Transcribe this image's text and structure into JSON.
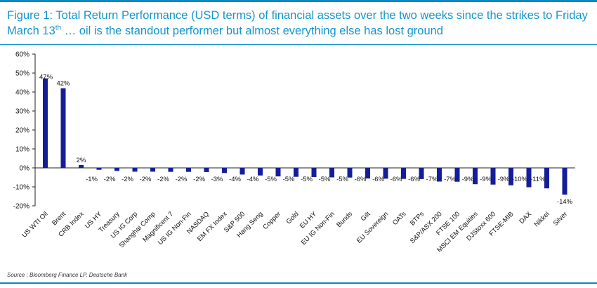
{
  "figure": {
    "title_main": "Figure 1: Total Return Performance (USD terms) of financial assets over the two weeks since the strikes to Friday March 13",
    "title_sup": "th",
    "title_rest": " … oil is the standout performer but almost everything else has lost ground",
    "source": "Source : Bloomberg Finance LP, Deutsche Bank"
  },
  "colors": {
    "bar": "#141e9b",
    "title": "#1495cf",
    "rule": "#0a8ac4"
  },
  "chart_data": {
    "type": "bar",
    "categories": [
      "US WTI Oil",
      "Brent",
      "CRB Index",
      "US HY",
      "Treasury",
      "US IG Corp",
      "Shanghai Comp",
      "Magnificent 7",
      "US IG Non-Fin",
      "NASDAQ",
      "EM FX Index",
      "S&P 500",
      "Hang Seng",
      "Copper",
      "Gold",
      "EU HY",
      "EU IG Non-Fin",
      "Bunds",
      "Gilt",
      "EU Sovereign",
      "OATs",
      "BTPs",
      "S&P/ASX 200",
      "FTSE 100",
      "MSCI EM Equities",
      "DJStoxx 600",
      "FTSE-MIB",
      "DAX",
      "Nikkei",
      "Silver"
    ],
    "values": [
      47,
      42,
      2,
      -1,
      -2,
      -2,
      -2,
      -2,
      -2,
      -2,
      -3,
      -4,
      -4,
      -5,
      -5,
      -5,
      -5,
      -5,
      -6,
      -6,
      -6,
      -6,
      -7,
      -7,
      -9,
      -9,
      -9,
      -10,
      -11,
      -14
    ],
    "bar_values": [
      47.2,
      42.0,
      1.5,
      -1.0,
      -1.6,
      -2.0,
      -2.0,
      -2.1,
      -2.1,
      -2.2,
      -2.7,
      -3.5,
      -4.0,
      -4.5,
      -4.7,
      -4.8,
      -5.0,
      -5.1,
      -5.6,
      -5.7,
      -5.8,
      -5.9,
      -7.2,
      -7.3,
      -8.6,
      -8.8,
      -9.2,
      -10.2,
      -10.8,
      -14.1
    ],
    "data_labels": [
      "47%",
      "42%",
      "2%",
      "-1%",
      "-2%",
      "-2%",
      "-2%",
      "-2%",
      "-2%",
      "-2%",
      "-3%",
      "-4%",
      "-4%",
      "-5%",
      "-5%",
      "-5%",
      "-5%",
      "-5%",
      "-6%",
      "-6%",
      "-6%",
      "-6%",
      "-7%",
      "-7%",
      "-9%",
      "-9%",
      "-9%",
      "-10%",
      "-11%",
      "-14%"
    ],
    "yticks": [
      "60%",
      "50%",
      "40%",
      "30%",
      "20%",
      "10%",
      "0%",
      "-10%",
      "-20%"
    ],
    "ytick_values": [
      60,
      50,
      40,
      30,
      20,
      10,
      0,
      -10,
      -20
    ],
    "ylim": [
      -20,
      60
    ],
    "xlabel": "",
    "ylabel": "",
    "grid": false,
    "legend": "none"
  }
}
